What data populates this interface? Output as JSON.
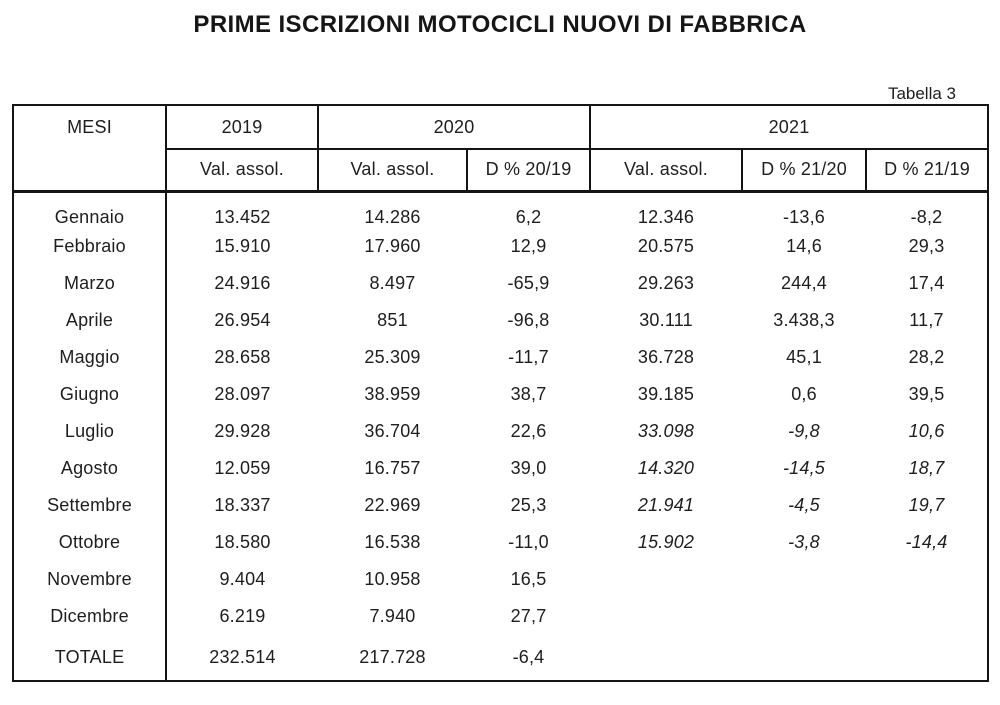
{
  "chart_data": {
    "type": "table",
    "title": "PRIME ISCRIZIONI MOTOCICLI NUOVI DI FABBRICA",
    "caption": "Tabella 3",
    "header": {
      "mesi": "MESI",
      "y2019": "2019",
      "y2020": "2020",
      "y2021": "2021",
      "sub": [
        "Val. assol.",
        "Val. assol.",
        "D % 20/19",
        "Val. assol.",
        "D % 21/20",
        "D % 21/19"
      ]
    },
    "columns": [
      "MESI",
      "2019 Val. assol.",
      "2020 Val. assol.",
      "2020 D % 20/19",
      "2021 Val. assol.",
      "2021 D % 21/20",
      "2021 D % 21/19"
    ],
    "rows": [
      [
        "Gennaio",
        "13.452",
        "14.286",
        "6,2",
        "12.346",
        "-13,6",
        "-8,2"
      ],
      [
        "Febbraio",
        "15.910",
        "17.960",
        "12,9",
        "20.575",
        "14,6",
        "29,3"
      ],
      [
        "Marzo",
        "24.916",
        "8.497",
        "-65,9",
        "29.263",
        "244,4",
        "17,4"
      ],
      [
        "Aprile",
        "26.954",
        "851",
        "-96,8",
        "30.111",
        "3.438,3",
        "11,7"
      ],
      [
        "Maggio",
        "28.658",
        "25.309",
        "-11,7",
        "36.728",
        "45,1",
        "28,2"
      ],
      [
        "Giugno",
        "28.097",
        "38.959",
        "38,7",
        "39.185",
        "0,6",
        "39,5"
      ],
      [
        "Luglio",
        "29.928",
        "36.704",
        "22,6",
        "33.098",
        "-9,8",
        "10,6"
      ],
      [
        "Agosto",
        "12.059",
        "16.757",
        "39,0",
        "14.320",
        "-14,5",
        "18,7"
      ],
      [
        "Settembre",
        "18.337",
        "22.969",
        "25,3",
        "21.941",
        "-4,5",
        "19,7"
      ],
      [
        "Ottobre",
        "18.580",
        "16.538",
        "-11,0",
        "15.902",
        "-3,8",
        "-14,4"
      ],
      [
        "Novembre",
        "9.404",
        "10.958",
        "16,5",
        "",
        "",
        ""
      ],
      [
        "Dicembre",
        "6.219",
        "7.940",
        "27,7",
        "",
        "",
        ""
      ],
      [
        "TOTALE",
        "232.514",
        "217.728",
        "-6,4",
        "",
        "",
        ""
      ]
    ]
  }
}
